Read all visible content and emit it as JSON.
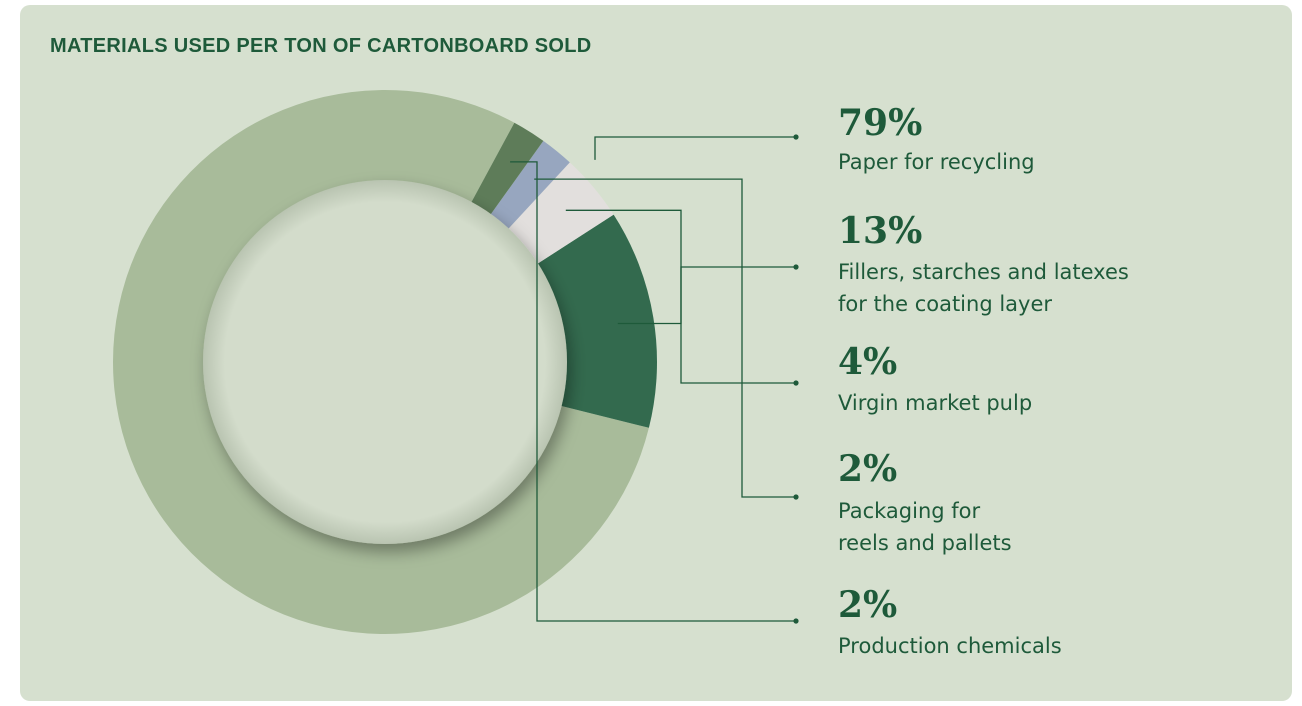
{
  "title": "MATERIALS USED PER TON OF CARTONBOARD SOLD",
  "chart_data": {
    "type": "pie",
    "title": "MATERIALS USED PER TON OF CARTONBOARD SOLD",
    "slices": [
      {
        "value": 79,
        "pct_label": "79%",
        "label_lines": [
          "Paper for recycling"
        ],
        "color": "#a8bb9a"
      },
      {
        "value": 13,
        "pct_label": "13%",
        "label_lines": [
          "Fillers, starches and latexes",
          "for the coating layer"
        ],
        "color": "#336a4e"
      },
      {
        "value": 4,
        "pct_label": "4%",
        "label_lines": [
          "Virgin market pulp"
        ],
        "color": "#e2dfdd"
      },
      {
        "value": 2,
        "pct_label": "2%",
        "label_lines": [
          "Packaging for",
          "reels and pallets"
        ],
        "color": "#97a6bf"
      },
      {
        "value": 2,
        "pct_label": "2%",
        "label_lines": [
          "Production chemicals"
        ],
        "color": "#5e7c59"
      }
    ],
    "legend": "right"
  },
  "colors": {
    "ink": "#1e5a3a",
    "background": "#d6e0cf",
    "hole": "#d3dccb"
  }
}
